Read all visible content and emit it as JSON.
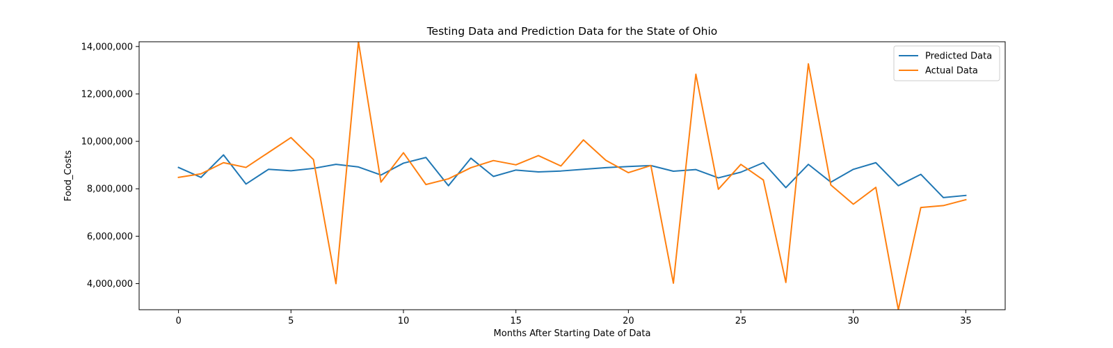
{
  "chart_data": {
    "type": "line",
    "title": "Testing Data and Prediction Data for the State of Ohio",
    "xlabel": "Months After Starting Date of Data",
    "ylabel": "Food_Costs",
    "xlim": [
      -1.75,
      36.75
    ],
    "ylim": [
      2900000,
      14200000
    ],
    "xticks": [
      0,
      5,
      10,
      15,
      20,
      25,
      30,
      35
    ],
    "xtick_labels": [
      "0",
      "5",
      "10",
      "15",
      "20",
      "25",
      "30",
      "35"
    ],
    "yticks": [
      4000000,
      6000000,
      8000000,
      10000000,
      12000000,
      14000000
    ],
    "ytick_labels": [
      "4,000,000",
      "6,000,000",
      "8,000,000",
      "10,000,000",
      "12,000,000",
      "14,000,000"
    ],
    "grid": false,
    "legend_position": "top-right",
    "x": [
      0,
      1,
      2,
      3,
      4,
      5,
      6,
      7,
      8,
      9,
      10,
      11,
      12,
      13,
      14,
      15,
      16,
      17,
      18,
      19,
      20,
      21,
      22,
      23,
      24,
      25,
      26,
      27,
      28,
      29,
      30,
      31,
      32,
      33,
      34,
      35
    ],
    "series": [
      {
        "name": "Predicted Data",
        "color": "#1f77b4",
        "values": [
          8900000,
          8480000,
          9430000,
          8200000,
          8820000,
          8760000,
          8860000,
          9030000,
          8920000,
          8580000,
          9080000,
          9320000,
          8130000,
          9290000,
          8520000,
          8790000,
          8710000,
          8750000,
          8820000,
          8890000,
          8940000,
          8980000,
          8740000,
          8810000,
          8460000,
          8700000,
          9100000,
          8050000,
          9030000,
          8280000,
          8820000,
          9100000,
          8130000,
          8610000,
          7630000,
          7720000
        ]
      },
      {
        "name": "Actual Data",
        "color": "#ff7f0e",
        "values": [
          8480000,
          8630000,
          9100000,
          8900000,
          9530000,
          10160000,
          9230000,
          4000000,
          14200000,
          8280000,
          9520000,
          8180000,
          8420000,
          8890000,
          9190000,
          9010000,
          9400000,
          8960000,
          10060000,
          9200000,
          8680000,
          8980000,
          4020000,
          12830000,
          7980000,
          9030000,
          8370000,
          4050000,
          13270000,
          8160000,
          7350000,
          8060000,
          2900000,
          7210000,
          7290000,
          7540000
        ]
      }
    ]
  }
}
